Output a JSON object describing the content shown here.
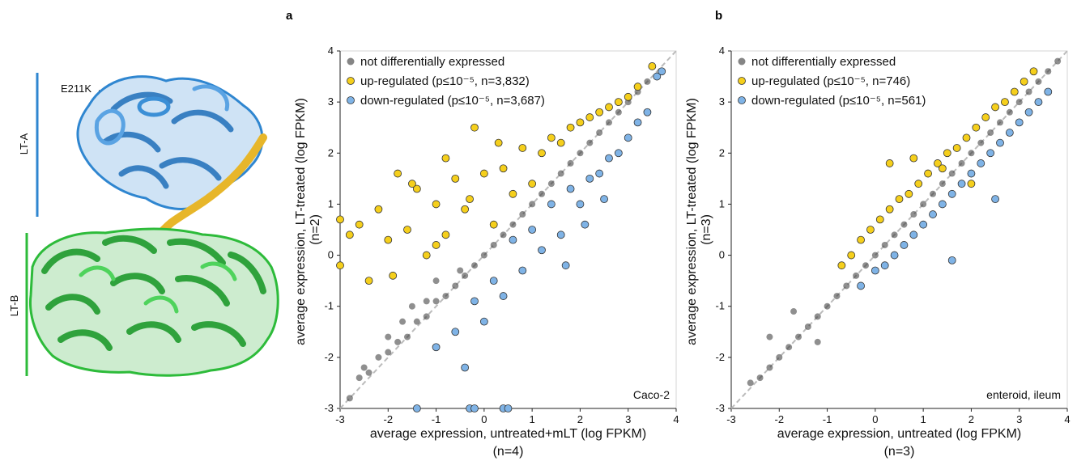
{
  "structure": {
    "label_a": "LT-A",
    "label_b": "LT-B",
    "mutation": "E211K",
    "colors": {
      "lt_a": "#2f86d0",
      "lt_b": "#2dbb3a",
      "helix": "#e7b62a"
    }
  },
  "colors": {
    "not_de": "#333333",
    "up": "#f5cf1c",
    "down": "#7fb3e6",
    "diagonal": "#bbbbbb"
  },
  "legend": {
    "not_de": "not differentially expressed"
  },
  "chart_data": [
    {
      "panel": "a",
      "type": "scatter",
      "xlabel": "average expression, untreated+mLT (log FPKM)",
      "xlabel_sub": "(n=4)",
      "ylabel": "average expression, LT-treated (log FPKM)",
      "ylabel_sub": "(n=2)",
      "xlim": [
        -3,
        4
      ],
      "ylim": [
        -3,
        4
      ],
      "xticks": [
        "-3",
        "-2",
        "-1",
        "0",
        "1",
        "2",
        "3",
        "4"
      ],
      "yticks": [
        "-3",
        "-2",
        "-1",
        "0",
        "1",
        "2",
        "3",
        "4"
      ],
      "annotation": "Caco-2",
      "legend": [
        {
          "label": "not differentially expressed",
          "class": "not_de"
        },
        {
          "label": "up-regulated (p≤10⁻⁵, n=3,832)",
          "class": "up"
        },
        {
          "label": "down-regulated (p≤10⁻⁵, n=3,687)",
          "class": "down"
        }
      ],
      "series": [
        {
          "name": "not differentially expressed",
          "x": [
            -2.6,
            -2.4,
            -2.2,
            -2.0,
            -1.8,
            -1.6,
            -1.4,
            -1.2,
            -1.0,
            -0.8,
            -0.6,
            -0.4,
            -0.2,
            0.0,
            0.2,
            0.4,
            0.6,
            0.8,
            1.0,
            1.2,
            1.4,
            1.6,
            1.8,
            2.0,
            2.2,
            2.4,
            2.6,
            2.8,
            3.0,
            3.2,
            3.4,
            -2.0,
            -1.5,
            -1.0,
            -0.5,
            -2.8,
            -2.5,
            -1.7,
            -1.2
          ],
          "y": [
            -2.4,
            -2.3,
            -2.0,
            -1.9,
            -1.7,
            -1.6,
            -1.3,
            -1.2,
            -0.9,
            -0.8,
            -0.6,
            -0.4,
            -0.2,
            0.0,
            0.2,
            0.4,
            0.6,
            0.8,
            1.0,
            1.2,
            1.4,
            1.6,
            1.8,
            2.0,
            2.2,
            2.4,
            2.6,
            2.8,
            3.0,
            3.2,
            3.4,
            -1.6,
            -1.0,
            -0.5,
            -0.3,
            -2.8,
            -2.2,
            -1.3,
            -0.9
          ]
        },
        {
          "name": "up-regulated (p≤10⁻⁵, n=3,832)",
          "x": [
            -3.0,
            -3.0,
            -2.8,
            -2.6,
            -2.4,
            -2.2,
            -2.0,
            -1.8,
            -1.6,
            -1.4,
            -1.2,
            -1.0,
            -0.8,
            -0.6,
            -0.4,
            -0.2,
            0.0,
            0.2,
            0.4,
            0.6,
            0.8,
            1.0,
            1.2,
            1.4,
            1.6,
            1.8,
            2.0,
            2.2,
            2.4,
            2.6,
            2.8,
            3.0,
            3.2,
            3.5,
            -0.8,
            -0.3,
            0.3,
            -1.5,
            -1.9,
            -1.0
          ],
          "y": [
            0.7,
            -0.2,
            0.4,
            0.6,
            -0.5,
            0.9,
            0.3,
            1.6,
            0.5,
            1.3,
            0.0,
            1.0,
            0.4,
            1.5,
            0.9,
            2.5,
            1.6,
            0.6,
            1.7,
            1.2,
            2.1,
            1.4,
            2.0,
            2.3,
            2.2,
            2.5,
            2.6,
            2.7,
            2.8,
            2.9,
            3.0,
            3.1,
            3.3,
            3.7,
            1.9,
            1.1,
            2.2,
            1.4,
            -0.4,
            0.2
          ]
        },
        {
          "name": "down-regulated (p≤10⁻⁵, n=3,687)",
          "x": [
            -1.0,
            -0.6,
            -0.4,
            -0.2,
            0.0,
            0.2,
            0.4,
            0.6,
            0.8,
            1.0,
            1.2,
            1.4,
            1.6,
            1.8,
            2.0,
            2.2,
            2.4,
            2.6,
            2.8,
            3.0,
            3.2,
            3.4,
            3.6,
            3.7,
            -0.3,
            -0.2,
            0.4,
            0.5,
            -1.4,
            1.7,
            2.1,
            2.5
          ],
          "y": [
            -1.8,
            -1.5,
            -2.2,
            -0.9,
            -1.3,
            -0.5,
            -0.8,
            0.3,
            -0.3,
            0.5,
            0.1,
            1.0,
            0.4,
            1.3,
            1.0,
            1.5,
            1.6,
            1.9,
            2.0,
            2.3,
            2.6,
            2.8,
            3.5,
            3.6,
            -3.0,
            -3.0,
            -3.0,
            -3.0,
            -3.0,
            -0.2,
            0.6,
            1.1
          ]
        }
      ]
    },
    {
      "panel": "b",
      "type": "scatter",
      "xlabel": "average expression, untreated (log FPKM)",
      "xlabel_sub": "(n=3)",
      "ylabel": "average expression, LT-treated (log FPKM)",
      "ylabel_sub": "(n=3)",
      "xlim": [
        -3,
        4
      ],
      "ylim": [
        -3,
        4
      ],
      "xticks": [
        "-3",
        "-2",
        "-1",
        "0",
        "1",
        "2",
        "3",
        "4"
      ],
      "yticks": [
        "-3",
        "-2",
        "-1",
        "0",
        "1",
        "2",
        "3",
        "4"
      ],
      "annotation": "enteroid, ileum",
      "legend": [
        {
          "label": "not differentially expressed",
          "class": "not_de"
        },
        {
          "label": "up-regulated (p≤10⁻⁵, n=746)",
          "class": "up"
        },
        {
          "label": "down-regulated (p≤10⁻⁵, n=561)",
          "class": "down"
        }
      ],
      "series": [
        {
          "name": "not differentially expressed",
          "x": [
            -2.6,
            -2.4,
            -2.2,
            -2.0,
            -1.8,
            -1.6,
            -1.4,
            -1.2,
            -1.0,
            -0.8,
            -0.6,
            -0.4,
            -0.2,
            0.0,
            0.2,
            0.4,
            0.6,
            0.8,
            1.0,
            1.2,
            1.4,
            1.6,
            1.8,
            2.0,
            2.2,
            2.4,
            2.6,
            2.8,
            3.0,
            3.2,
            3.4,
            3.6,
            3.8,
            -2.2,
            -1.7,
            -1.2
          ],
          "y": [
            -2.5,
            -2.4,
            -2.2,
            -2.0,
            -1.8,
            -1.6,
            -1.4,
            -1.2,
            -1.0,
            -0.8,
            -0.6,
            -0.4,
            -0.2,
            0.0,
            0.2,
            0.4,
            0.6,
            0.8,
            1.0,
            1.2,
            1.4,
            1.6,
            1.8,
            2.0,
            2.2,
            2.4,
            2.6,
            2.8,
            3.0,
            3.2,
            3.4,
            3.6,
            3.8,
            -1.6,
            -1.1,
            -1.7
          ]
        },
        {
          "name": "up-regulated (p≤10⁻⁵, n=746)",
          "x": [
            -0.7,
            -0.5,
            -0.3,
            -0.1,
            0.1,
            0.3,
            0.5,
            0.7,
            0.9,
            1.1,
            1.3,
            1.5,
            1.7,
            1.9,
            2.1,
            2.3,
            2.5,
            2.7,
            2.9,
            3.1,
            3.3,
            0.8,
            1.4,
            2.0,
            0.3
          ],
          "y": [
            -0.2,
            0.0,
            0.3,
            0.5,
            0.7,
            0.9,
            1.1,
            1.2,
            1.4,
            1.6,
            1.8,
            2.0,
            2.1,
            2.3,
            2.5,
            2.7,
            2.9,
            3.0,
            3.2,
            3.4,
            3.6,
            1.9,
            1.7,
            1.4,
            1.8
          ]
        },
        {
          "name": "down-regulated (p≤10⁻⁵, n=561)",
          "x": [
            -0.3,
            0.0,
            0.2,
            0.4,
            0.6,
            0.8,
            1.0,
            1.2,
            1.4,
            1.6,
            1.8,
            2.0,
            2.2,
            2.4,
            2.6,
            2.8,
            3.0,
            3.2,
            3.4,
            3.6,
            1.6,
            2.5
          ],
          "y": [
            -0.6,
            -0.3,
            -0.2,
            0.0,
            0.2,
            0.4,
            0.6,
            0.8,
            1.0,
            1.2,
            1.4,
            1.6,
            1.8,
            2.0,
            2.2,
            2.4,
            2.6,
            2.8,
            3.0,
            3.2,
            -0.1,
            1.1
          ]
        }
      ]
    }
  ]
}
